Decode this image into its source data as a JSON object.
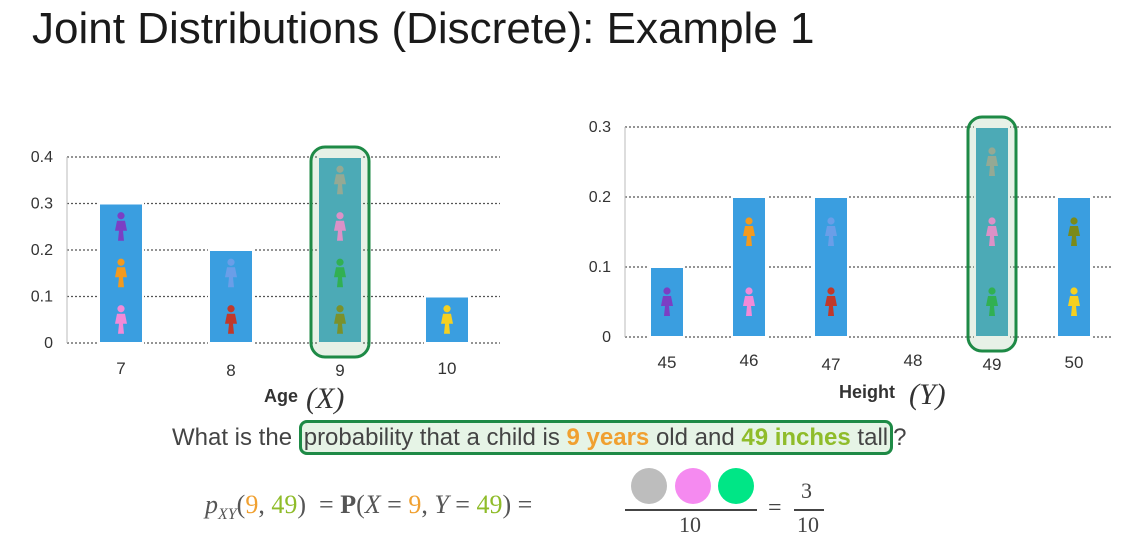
{
  "title": "Joint Distributions (Discrete): Example 1",
  "chart_data": [
    {
      "type": "bar",
      "categories": [
        "7",
        "8",
        "9",
        "10"
      ],
      "values": [
        0.3,
        0.2,
        0.4,
        0.1
      ],
      "ylim": [
        0,
        0.4
      ],
      "yticks": [
        "0",
        "0.1",
        "0.2",
        "0.3",
        "0.4"
      ],
      "xlabel_word": "Age",
      "xlabel_var": "(X)",
      "highlight_category": "9",
      "grid": "dotted horizontal",
      "bar_color": "#3a9ee0",
      "highlight_color": "#1e8a46"
    },
    {
      "type": "bar",
      "categories": [
        "45",
        "46",
        "47",
        "48",
        "49",
        "50"
      ],
      "values": [
        0.1,
        0.2,
        0.2,
        0,
        0.3,
        0.2
      ],
      "ylim": [
        0,
        0.3
      ],
      "yticks": [
        "0",
        "0.1",
        "0.2",
        "0.3"
      ],
      "xlabel_word": "Height",
      "xlabel_var": "(Y)",
      "highlight_category": "49",
      "grid": "dotted horizontal",
      "bar_color": "#3a9ee0",
      "highlight_color": "#1e8a46"
    }
  ],
  "icons": {
    "age": [
      [
        "purple-child",
        "orange-child",
        "pink-child"
      ],
      [
        "blue-child",
        "red-child"
      ],
      [
        "gray-child",
        "pink-child",
        "green-child",
        "olive-child"
      ],
      [
        "yellow-child"
      ]
    ],
    "height": [
      [
        "purple-child"
      ],
      [
        "orange-child",
        "pink-child"
      ],
      [
        "blue-child",
        "red-child"
      ],
      [],
      [
        "gray-child",
        "pink-child",
        "green-child"
      ],
      [
        "olive-child",
        "yellow-child"
      ]
    ],
    "colors": {
      "purple-child": "#7b3fc4",
      "orange-child": "#f39a1e",
      "pink-child": "#f28ad8",
      "blue-child": "#6a9ee8",
      "red-child": "#c0392b",
      "gray-child": "#9aa89a",
      "green-child": "#22b04a",
      "olive-child": "#7a8a1a",
      "yellow-child": "#f5d020"
    }
  },
  "question": {
    "prefix": "What is the ",
    "part1": "probability that a child is ",
    "age_value": "9 years",
    "part2": " old and ",
    "height_value": "49 inches",
    "part3": " tall",
    "suffix": "?"
  },
  "formula": {
    "lhs_p": "p",
    "lhs_sub": "XY",
    "arg_open": "(",
    "arg_x": "9",
    "arg_sep": ", ",
    "arg_y": "49",
    "arg_close": ")",
    "eq1": "  = ",
    "prob_P": "P",
    "prob_open": "(",
    "prob_X": "X",
    "prob_eq_x": " = ",
    "prob_x": "9",
    "prob_sep": ", ",
    "prob_Y": "Y",
    "prob_eq_y": " = ",
    "prob_y": "49",
    "prob_close": ")",
    "eq2": " = ",
    "denominator": "10",
    "eq3": "=",
    "result_num": "3",
    "result_den": "10",
    "circle_colors": [
      "#bdbdbd",
      "#f58af0",
      "#00e686"
    ]
  }
}
